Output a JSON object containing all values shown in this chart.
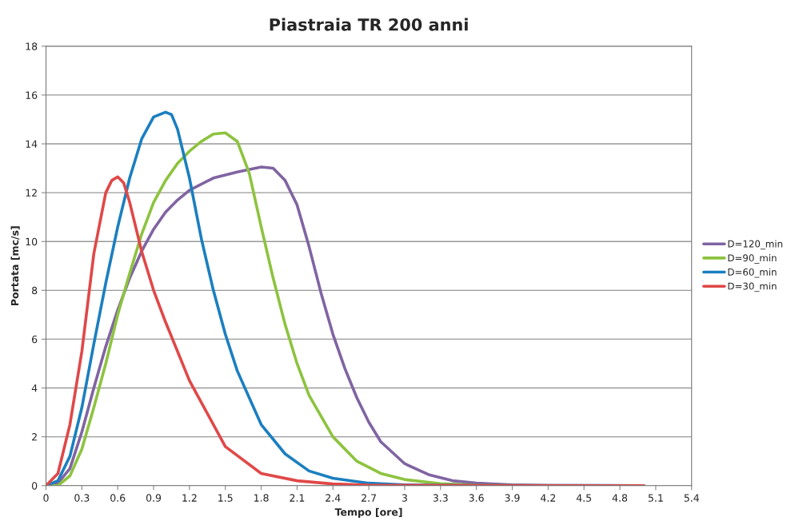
{
  "chart_data": {
    "type": "line",
    "title": "Piastraia TR 200 anni",
    "xlabel": "Tempo [ore]",
    "ylabel": "Portata [mc/s]",
    "xlim": [
      0,
      5.4
    ],
    "xticks": [
      0,
      0.3,
      0.6,
      0.9,
      1.2,
      1.5,
      1.8,
      2.1,
      2.4,
      2.7,
      3,
      3.3,
      3.6,
      3.9,
      4.2,
      4.5,
      4.8,
      5.1,
      5.4
    ],
    "ylim": [
      0,
      18
    ],
    "yticks": [
      0,
      2,
      4,
      6,
      8,
      10,
      12,
      14,
      16,
      18
    ],
    "grid": "y",
    "legend": "right",
    "marker": "none",
    "line_style": "solid",
    "series": [
      {
        "name": "D=120_min",
        "color": "#8064a2",
        "x": [
          0,
          0.1,
          0.2,
          0.3,
          0.4,
          0.5,
          0.6,
          0.7,
          0.8,
          0.9,
          1.0,
          1.1,
          1.2,
          1.4,
          1.6,
          1.8,
          1.9,
          2.0,
          2.1,
          2.2,
          2.3,
          2.4,
          2.5,
          2.6,
          2.7,
          2.8,
          3.0,
          3.2,
          3.4,
          3.6,
          3.9,
          4.2,
          5.0
        ],
        "values": [
          0,
          0.1,
          0.7,
          2.2,
          4.0,
          5.7,
          7.2,
          8.5,
          9.6,
          10.5,
          11.2,
          11.7,
          12.1,
          12.6,
          12.85,
          13.05,
          13.0,
          12.5,
          11.5,
          9.8,
          7.9,
          6.2,
          4.8,
          3.6,
          2.6,
          1.8,
          0.9,
          0.45,
          0.2,
          0.1,
          0.03,
          0,
          0
        ]
      },
      {
        "name": "D=90_min",
        "color": "#8dc33f",
        "x": [
          0,
          0.1,
          0.2,
          0.3,
          0.4,
          0.5,
          0.6,
          0.7,
          0.8,
          0.9,
          1.0,
          1.1,
          1.2,
          1.3,
          1.4,
          1.5,
          1.6,
          1.7,
          1.8,
          1.9,
          2.0,
          2.1,
          2.2,
          2.4,
          2.6,
          2.8,
          3.0,
          3.3,
          3.6,
          4.0,
          5.0
        ],
        "values": [
          0,
          0,
          0.4,
          1.5,
          3.2,
          5.0,
          7.0,
          8.7,
          10.3,
          11.6,
          12.5,
          13.2,
          13.7,
          14.1,
          14.4,
          14.45,
          14.1,
          12.8,
          10.6,
          8.5,
          6.6,
          5.0,
          3.7,
          2.0,
          1.0,
          0.5,
          0.25,
          0.08,
          0.02,
          0,
          0
        ]
      },
      {
        "name": "D=60_min",
        "color": "#1b7fc0",
        "x": [
          0,
          0.1,
          0.2,
          0.3,
          0.4,
          0.5,
          0.6,
          0.7,
          0.8,
          0.9,
          1.0,
          1.05,
          1.1,
          1.2,
          1.3,
          1.4,
          1.5,
          1.6,
          1.8,
          2.0,
          2.2,
          2.4,
          2.7,
          3.0,
          3.3,
          5.0
        ],
        "values": [
          0,
          0.2,
          1.2,
          3.2,
          5.8,
          8.3,
          10.6,
          12.6,
          14.2,
          15.1,
          15.3,
          15.2,
          14.6,
          12.6,
          10.1,
          8.0,
          6.2,
          4.7,
          2.5,
          1.3,
          0.6,
          0.3,
          0.1,
          0.03,
          0.01,
          0
        ]
      },
      {
        "name": "D=30_min",
        "color": "#e04848",
        "x": [
          0,
          0.1,
          0.2,
          0.3,
          0.4,
          0.5,
          0.55,
          0.6,
          0.65,
          0.7,
          0.8,
          0.9,
          1.0,
          1.2,
          1.5,
          1.8,
          2.1,
          2.4,
          2.7,
          3.0,
          5.0
        ],
        "values": [
          0,
          0.5,
          2.5,
          5.5,
          9.5,
          12.0,
          12.5,
          12.65,
          12.4,
          11.6,
          9.6,
          8.0,
          6.7,
          4.3,
          1.6,
          0.5,
          0.2,
          0.07,
          0.02,
          0.01,
          0
        ]
      }
    ]
  }
}
